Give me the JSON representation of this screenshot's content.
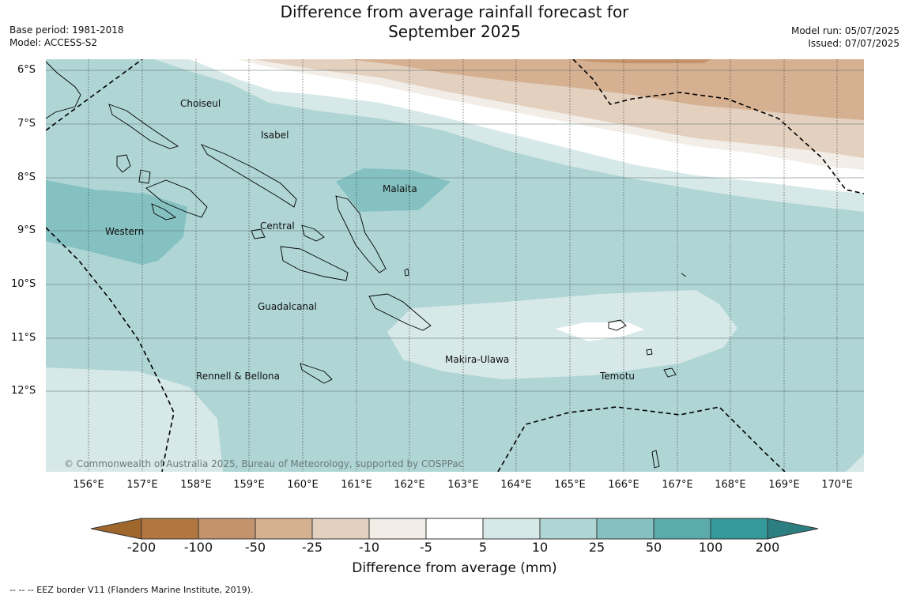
{
  "title_line1": "Difference from average rainfall forecast for",
  "title_line2": "September 2025",
  "base_period": "Base period: 1981-2018",
  "model": "Model: ACCESS-S2",
  "model_run": "Model run: 05/07/2025",
  "issued": "Issued: 07/07/2025",
  "lat_labels": [
    "6°S",
    "7°S",
    "8°S",
    "9°S",
    "10°S",
    "11°S",
    "12°S"
  ],
  "lon_labels": [
    "156°E",
    "157°E",
    "158°E",
    "159°E",
    "160°E",
    "161°E",
    "162°E",
    "163°E",
    "164°E",
    "165°E",
    "166°E",
    "167°E",
    "168°E",
    "169°E",
    "170°E"
  ],
  "regions": [
    "Choiseul",
    "Isabel",
    "Malaita",
    "Western",
    "Central",
    "Guadalcanal",
    "Makira-Ulawa",
    "Rennell & Bellona",
    "Temotu"
  ],
  "copyright": "© Commonwealth of Australia 2025, Bureau of Meteorology, supported by COSPPac",
  "colorbar": {
    "ticks": [
      "-200",
      "-100",
      "-50",
      "-25",
      "-10",
      "-5",
      "5",
      "10",
      "25",
      "50",
      "100",
      "200"
    ],
    "colors": [
      "#a0672c",
      "#b27740",
      "#c3936b",
      "#d5b091",
      "#e3d0bf",
      "#f2ede6",
      "#ffffff",
      "#d6e8e7",
      "#afd5d5",
      "#85c1c1",
      "#5babab",
      "#33999a",
      "#2b7f80"
    ],
    "label": "Difference from average (mm)"
  },
  "legend_footnote": "--  --  -- EEZ border V11 (Flanders Marine Institute, 2019)."
}
